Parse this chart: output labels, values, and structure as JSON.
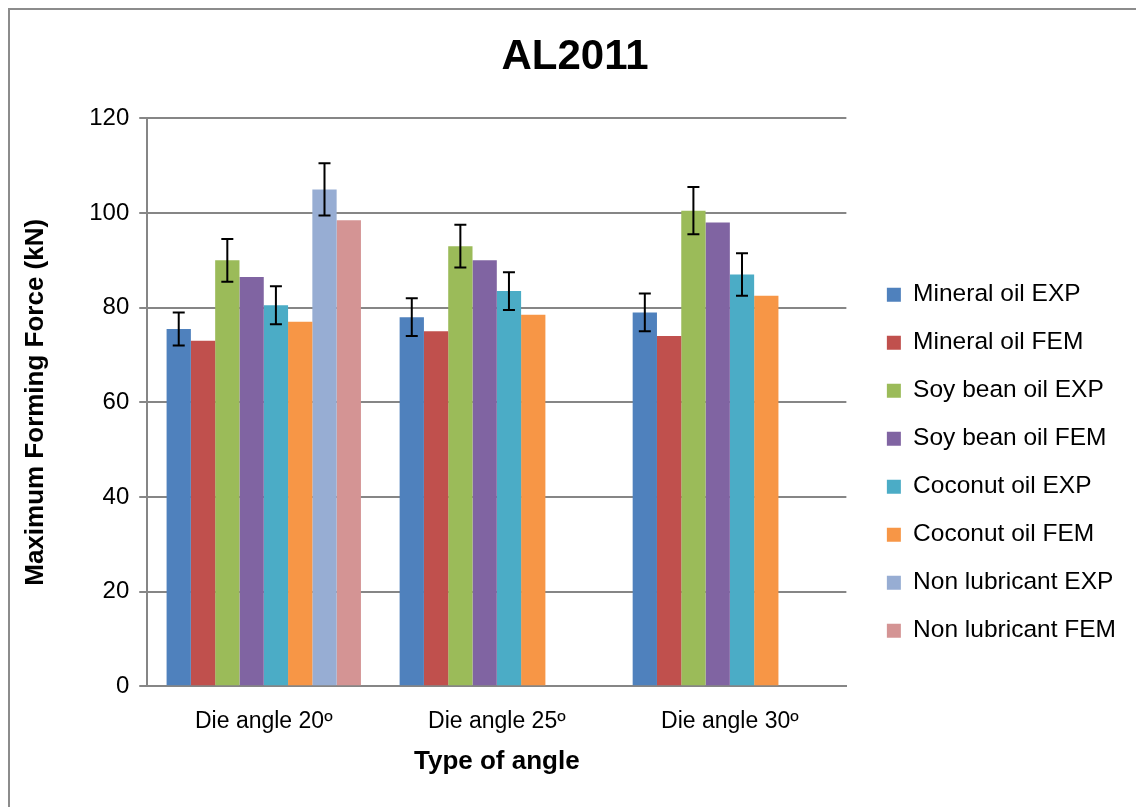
{
  "chart_data": {
    "type": "bar",
    "title": "AL2011",
    "xlabel": "Type of angle",
    "ylabel": "Maximum Forming Force (kN)",
    "categories": [
      "Die angle 20º",
      "Die angle 25º",
      "Die angle 30º"
    ],
    "ylim": [
      0,
      120
    ],
    "yticks": [
      0,
      20,
      40,
      60,
      80,
      100,
      120
    ],
    "grid": "y",
    "legend": "right",
    "series": [
      {
        "name": "Mineral oil EXP",
        "color": "#4f81bd",
        "values": [
          75.5,
          78,
          79
        ],
        "errors": [
          3.5,
          4,
          4
        ]
      },
      {
        "name": "Mineral oil FEM",
        "color": "#c0504d",
        "values": [
          73,
          75,
          74
        ]
      },
      {
        "name": "Soy bean oil EXP",
        "color": "#9bbb59",
        "values": [
          90,
          93,
          100.5
        ],
        "errors": [
          4.5,
          4.5,
          5
        ]
      },
      {
        "name": "Soy bean oil FEM",
        "color": "#8064a2",
        "values": [
          86.5,
          90,
          98
        ]
      },
      {
        "name": "Coconut oil EXP",
        "color": "#4bacc6",
        "values": [
          80.5,
          83.5,
          87
        ],
        "errors": [
          4,
          4,
          4.5
        ]
      },
      {
        "name": "Coconut oil FEM",
        "color": "#f79646",
        "values": [
          77,
          78.5,
          82.5
        ]
      },
      {
        "name": "Non lubricant EXP",
        "color": "#97add3",
        "values": [
          105,
          null,
          null
        ],
        "errors": [
          5.5,
          null,
          null
        ]
      },
      {
        "name": "Non lubricant FEM",
        "color": "#d49494",
        "values": [
          98.5,
          null,
          null
        ]
      }
    ]
  }
}
